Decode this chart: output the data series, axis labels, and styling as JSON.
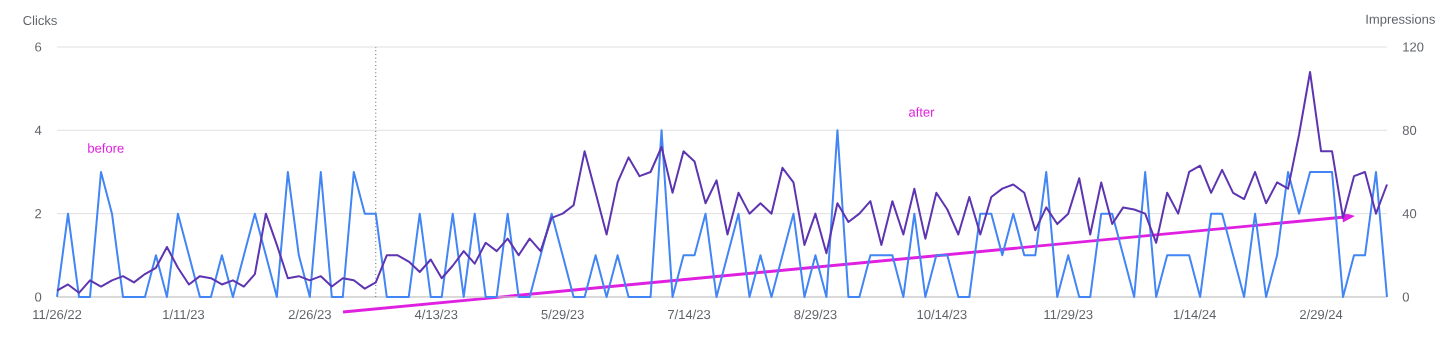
{
  "chart_data": {
    "type": "line",
    "ylabel": "Clicks",
    "y2label": "Impressions",
    "annotations": [
      "before",
      "after"
    ],
    "x": [
      "2022-11-26",
      "2022-11-30",
      "2022-12-04",
      "2022-12-08",
      "2022-12-12",
      "2022-12-16",
      "2022-12-20",
      "2022-12-24",
      "2022-12-28",
      "2023-01-01",
      "2023-01-05",
      "2023-01-09",
      "2023-01-13",
      "2023-01-17",
      "2023-01-21",
      "2023-01-25",
      "2023-01-29",
      "2023-02-02",
      "2023-02-06",
      "2023-02-10",
      "2023-02-14",
      "2023-02-18",
      "2023-02-22",
      "2023-02-26",
      "2023-03-02",
      "2023-03-06",
      "2023-03-10",
      "2023-03-14",
      "2023-03-18",
      "2023-03-22",
      "2023-03-26",
      "2023-03-30",
      "2023-04-03",
      "2023-04-07",
      "2023-04-11",
      "2023-04-15",
      "2023-04-19",
      "2023-04-23",
      "2023-04-27",
      "2023-05-01",
      "2023-05-05",
      "2023-05-09",
      "2023-05-13",
      "2023-05-17",
      "2023-05-21",
      "2023-05-25",
      "2023-05-29",
      "2023-06-02",
      "2023-06-06",
      "2023-06-10",
      "2023-06-14",
      "2023-06-18",
      "2023-06-22",
      "2023-06-26",
      "2023-06-30",
      "2023-07-04",
      "2023-07-08",
      "2023-07-12",
      "2023-07-16",
      "2023-07-20",
      "2023-07-24",
      "2023-07-28",
      "2023-08-01",
      "2023-08-05",
      "2023-08-09",
      "2023-08-13",
      "2023-08-17",
      "2023-08-21",
      "2023-08-25",
      "2023-08-29",
      "2023-09-02",
      "2023-09-06",
      "2023-09-10",
      "2023-09-14",
      "2023-09-18",
      "2023-09-22",
      "2023-09-26",
      "2023-09-30",
      "2023-10-04",
      "2023-10-08",
      "2023-10-12",
      "2023-10-16",
      "2023-10-20",
      "2023-10-24",
      "2023-10-28",
      "2023-11-01",
      "2023-11-05",
      "2023-11-09",
      "2023-11-13",
      "2023-11-17",
      "2023-11-21",
      "2023-11-25",
      "2023-11-29",
      "2023-12-03",
      "2023-12-07",
      "2023-12-11",
      "2023-12-15",
      "2023-12-19",
      "2023-12-23",
      "2023-12-27",
      "2023-12-31",
      "2024-01-04",
      "2024-01-08",
      "2024-01-12",
      "2024-01-16",
      "2024-01-20",
      "2024-01-24",
      "2024-01-28",
      "2024-02-01",
      "2024-02-05",
      "2024-02-09",
      "2024-02-13",
      "2024-02-17",
      "2024-02-21",
      "2024-02-25",
      "2024-02-29",
      "2024-03-04",
      "2024-03-08",
      "2024-03-12",
      "2024-03-16",
      "2024-03-20",
      "2024-03-24"
    ],
    "series": [
      {
        "color": "#4285f4",
        "values": [
          0,
          2,
          0,
          0,
          3,
          2,
          0,
          0,
          0,
          1,
          0,
          2,
          1,
          0,
          0,
          1,
          0,
          1,
          2,
          1,
          0,
          3,
          1,
          0,
          3,
          0,
          0,
          3,
          2,
          2,
          0,
          0,
          0,
          2,
          0,
          0,
          2,
          0,
          2,
          0,
          0,
          2,
          0,
          0,
          1,
          2,
          1,
          0,
          0,
          1,
          0,
          1,
          0,
          0,
          0,
          4,
          0,
          1,
          1,
          2,
          0,
          1,
          2,
          0,
          1,
          0,
          1,
          2,
          0,
          1,
          0,
          4,
          0,
          0,
          1,
          1,
          1,
          0,
          2,
          0,
          1,
          1,
          0,
          0,
          2,
          2,
          1,
          2,
          1,
          1,
          3,
          0,
          1,
          0,
          0,
          2,
          2,
          1,
          0,
          3,
          0,
          1,
          1,
          1,
          0,
          2,
          2,
          1,
          0,
          2,
          0,
          1,
          3,
          2,
          3,
          3,
          3,
          0,
          1,
          1,
          3,
          0
        ]
      },
      {
        "color": "#5e35b1",
        "axis": "y2",
        "values": [
          3,
          6,
          2,
          8,
          5,
          8,
          10,
          7,
          11,
          14,
          24,
          14,
          6,
          10,
          9,
          6,
          8,
          5,
          11,
          40,
          25,
          9,
          10,
          8,
          10,
          5,
          9,
          8,
          4,
          7,
          20,
          20,
          17,
          12,
          18,
          9,
          15,
          22,
          16,
          26,
          22,
          28,
          20,
          28,
          22,
          38,
          40,
          44,
          70,
          50,
          30,
          55,
          67,
          58,
          60,
          72,
          50,
          70,
          65,
          45,
          56,
          30,
          50,
          40,
          45,
          40,
          62,
          55,
          25,
          40,
          21,
          45,
          36,
          40,
          46,
          25,
          46,
          30,
          52,
          28,
          50,
          42,
          30,
          48,
          30,
          48,
          52,
          54,
          50,
          32,
          43,
          35,
          40,
          57,
          30,
          55,
          35,
          43,
          42,
          40,
          26,
          50,
          40,
          60,
          63,
          50,
          61,
          50,
          47,
          60,
          45,
          55,
          52,
          78,
          108,
          70,
          70,
          38,
          58,
          60,
          40,
          54
        ]
      }
    ],
    "xlim": [
      "2022-11-26",
      "2024-03-24"
    ],
    "xticks": [
      {
        "value": "2022-11-26",
        "label": "11/26/22"
      },
      {
        "value": "2023-01-11",
        "label": "1/11/23"
      },
      {
        "value": "2023-02-26",
        "label": "2/26/23"
      },
      {
        "value": "2023-04-13",
        "label": "4/13/23"
      },
      {
        "value": "2023-05-29",
        "label": "5/29/23"
      },
      {
        "value": "2023-07-14",
        "label": "7/14/23"
      },
      {
        "value": "2023-08-29",
        "label": "8/29/23"
      },
      {
        "value": "2023-10-14",
        "label": "10/14/23"
      },
      {
        "value": "2023-11-29",
        "label": "11/29/23"
      },
      {
        "value": "2024-01-14",
        "label": "1/14/24"
      },
      {
        "value": "2024-02-29",
        "label": "2/29/24"
      }
    ],
    "ylim": [
      0,
      6
    ],
    "yticks": [
      0,
      2,
      4,
      6
    ],
    "y2lim": [
      0,
      120
    ],
    "y2ticks": [
      0,
      40,
      80,
      120
    ],
    "ref_lines": [
      {
        "axis": "x",
        "value": "2023-03-22",
        "color": "#616161",
        "line_style": "dotted"
      }
    ],
    "grid": "y"
  }
}
